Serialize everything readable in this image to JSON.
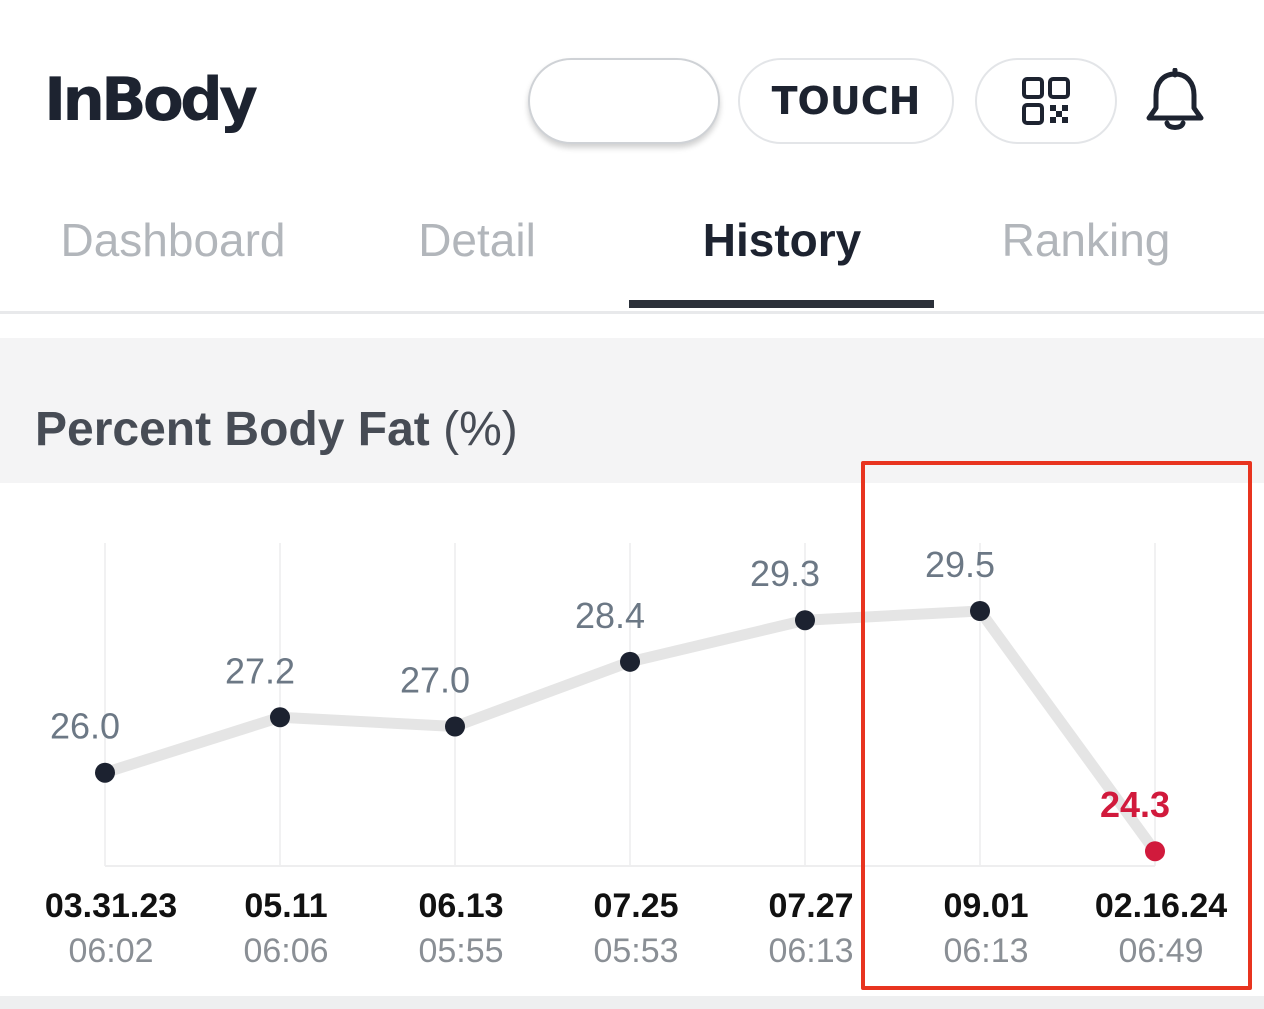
{
  "header": {
    "logo_text": "InBody",
    "touch_label": "TOUCH",
    "blank_pill_label": "",
    "qr_icon": "qr-code-icon",
    "bell_icon": "bell-icon"
  },
  "tabs": [
    {
      "label": "Dashboard",
      "active": false
    },
    {
      "label": "Detail",
      "active": false
    },
    {
      "label": "History",
      "active": true
    },
    {
      "label": "Ranking",
      "active": false
    }
  ],
  "chart": {
    "title": "Percent Body Fat",
    "unit": "(%)"
  },
  "colors": {
    "line": "#e5e5e5",
    "point": "#1c2230",
    "latest_point": "#d11a3c",
    "highlight_box": "#e8341f"
  },
  "chart_data": {
    "type": "line",
    "title": "Percent Body Fat (%)",
    "categories": [
      "03.31.23",
      "05.11",
      "06.13",
      "07.25",
      "07.27",
      "09.01",
      "02.16.24"
    ],
    "times": [
      "06:02",
      "06:06",
      "05:55",
      "05:53",
      "06:13",
      "06:13",
      "06:49"
    ],
    "values": [
      26.0,
      27.2,
      27.0,
      28.4,
      29.3,
      29.5,
      24.3
    ],
    "value_labels": [
      "26.0",
      "27.2",
      "27.0",
      "28.4",
      "29.3",
      "29.5",
      "24.3"
    ],
    "grid": true,
    "legend": "none"
  }
}
